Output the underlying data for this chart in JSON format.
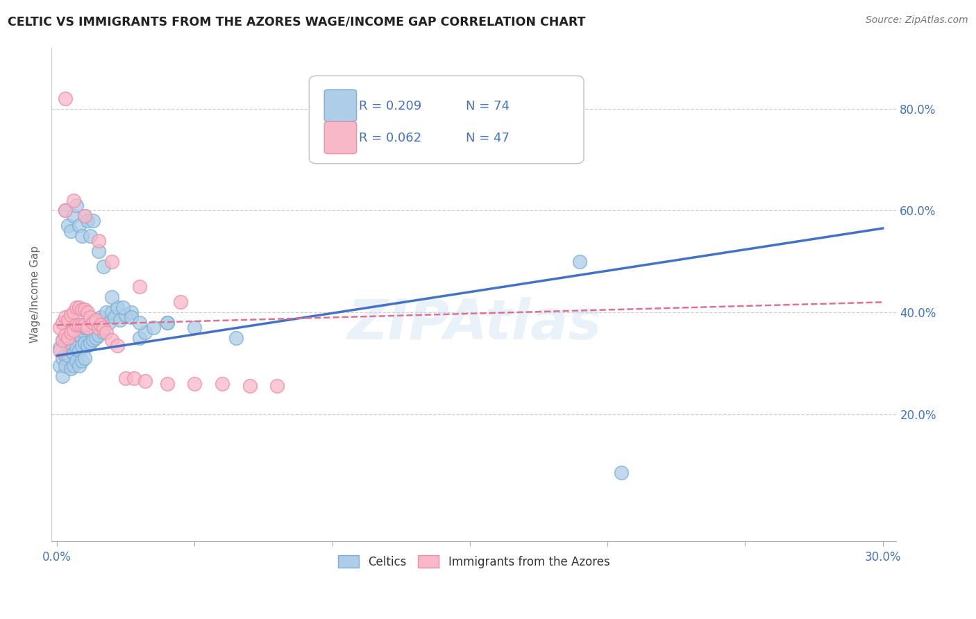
{
  "title": "CELTIC VS IMMIGRANTS FROM THE AZORES WAGE/INCOME GAP CORRELATION CHART",
  "source": "Source: ZipAtlas.com",
  "ylabel": "Wage/Income Gap",
  "xlim": [
    -0.002,
    0.305
  ],
  "ylim": [
    -0.05,
    0.92
  ],
  "xtick_vals": [
    0.0,
    0.05,
    0.1,
    0.15,
    0.2,
    0.25,
    0.3
  ],
  "ytick_vals": [
    0.2,
    0.4,
    0.6,
    0.8
  ],
  "ytick_labels": [
    "20.0%",
    "40.0%",
    "60.0%",
    "80.0%"
  ],
  "blue_color_fill": "#aecde8",
  "blue_color_edge": "#7ab0d4",
  "pink_color_fill": "#f9b8c8",
  "pink_color_edge": "#e890a8",
  "trend_blue_color": "#4472c4",
  "trend_pink_color": "#e07090",
  "text_blue": "#4472c4",
  "grid_color": "#d0d0d0",
  "figsize": [
    14.06,
    8.92
  ],
  "dpi": 100,
  "blue_x": [
    0.001,
    0.001,
    0.002,
    0.002,
    0.002,
    0.003,
    0.003,
    0.003,
    0.004,
    0.004,
    0.005,
    0.005,
    0.005,
    0.006,
    0.006,
    0.006,
    0.007,
    0.007,
    0.007,
    0.008,
    0.008,
    0.008,
    0.009,
    0.009,
    0.009,
    0.01,
    0.01,
    0.01,
    0.011,
    0.011,
    0.012,
    0.012,
    0.013,
    0.013,
    0.014,
    0.014,
    0.015,
    0.015,
    0.016,
    0.017,
    0.018,
    0.019,
    0.02,
    0.021,
    0.022,
    0.023,
    0.025,
    0.027,
    0.03,
    0.032,
    0.035,
    0.04,
    0.003,
    0.004,
    0.005,
    0.006,
    0.007,
    0.008,
    0.009,
    0.01,
    0.011,
    0.012,
    0.013,
    0.015,
    0.017,
    0.02,
    0.024,
    0.027,
    0.03,
    0.04,
    0.05,
    0.065,
    0.19,
    0.205
  ],
  "blue_y": [
    0.33,
    0.295,
    0.345,
    0.31,
    0.275,
    0.34,
    0.315,
    0.295,
    0.35,
    0.315,
    0.355,
    0.325,
    0.29,
    0.35,
    0.32,
    0.295,
    0.36,
    0.33,
    0.305,
    0.355,
    0.325,
    0.295,
    0.365,
    0.335,
    0.305,
    0.37,
    0.34,
    0.31,
    0.37,
    0.335,
    0.375,
    0.34,
    0.38,
    0.345,
    0.38,
    0.35,
    0.385,
    0.355,
    0.39,
    0.36,
    0.4,
    0.38,
    0.4,
    0.39,
    0.41,
    0.385,
    0.395,
    0.4,
    0.35,
    0.36,
    0.37,
    0.38,
    0.6,
    0.57,
    0.56,
    0.59,
    0.61,
    0.57,
    0.55,
    0.59,
    0.58,
    0.55,
    0.58,
    0.52,
    0.49,
    0.43,
    0.41,
    0.39,
    0.38,
    0.38,
    0.37,
    0.35,
    0.5,
    0.085
  ],
  "pink_x": [
    0.001,
    0.001,
    0.002,
    0.002,
    0.003,
    0.003,
    0.004,
    0.004,
    0.005,
    0.005,
    0.006,
    0.006,
    0.007,
    0.007,
    0.008,
    0.008,
    0.009,
    0.009,
    0.01,
    0.01,
    0.011,
    0.011,
    0.012,
    0.013,
    0.014,
    0.015,
    0.016,
    0.017,
    0.018,
    0.02,
    0.022,
    0.025,
    0.028,
    0.032,
    0.04,
    0.05,
    0.06,
    0.07,
    0.08,
    0.003,
    0.006,
    0.01,
    0.015,
    0.02,
    0.03,
    0.045,
    0.003
  ],
  "pink_y": [
    0.37,
    0.325,
    0.38,
    0.345,
    0.39,
    0.355,
    0.385,
    0.35,
    0.395,
    0.36,
    0.4,
    0.365,
    0.41,
    0.375,
    0.41,
    0.375,
    0.405,
    0.375,
    0.405,
    0.375,
    0.4,
    0.37,
    0.39,
    0.38,
    0.385,
    0.37,
    0.375,
    0.37,
    0.36,
    0.345,
    0.335,
    0.27,
    0.27,
    0.265,
    0.26,
    0.26,
    0.26,
    0.255,
    0.255,
    0.6,
    0.62,
    0.59,
    0.54,
    0.5,
    0.45,
    0.42,
    0.82
  ],
  "trend_blue_x0": 0.0,
  "trend_blue_y0": 0.315,
  "trend_blue_x1": 0.3,
  "trend_blue_y1": 0.565,
  "trend_pink_x0": 0.0,
  "trend_pink_y0": 0.375,
  "trend_pink_x1": 0.3,
  "trend_pink_y1": 0.42,
  "watermark_text": "ZIPAtlas",
  "legend_blue_label": "R = 0.209   N = 74",
  "legend_pink_label": "R = 0.062   N = 47"
}
